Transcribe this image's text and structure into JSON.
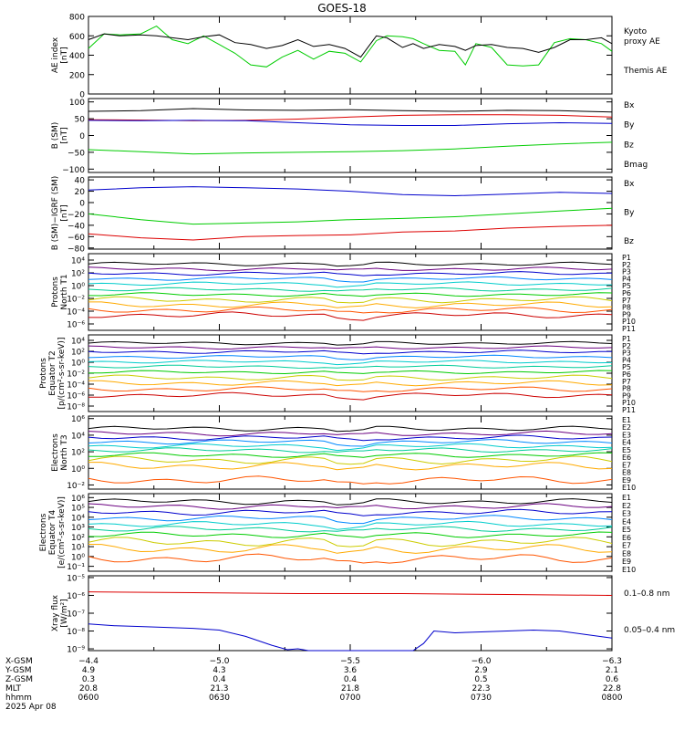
{
  "colors": {
    "black": "#000000",
    "blue": "#0000cc",
    "green": "#00cc00",
    "red": "#dd0000",
    "p_series": [
      "#000000",
      "#6a0080",
      "#0000cc",
      "#0088ff",
      "#00cccc",
      "#00cc99",
      "#00cc00",
      "#cccc00",
      "#ffaa00",
      "#ff5500",
      "#cc0000"
    ],
    "e_series": [
      "#000000",
      "#6a0080",
      "#0000cc",
      "#0088ff",
      "#00cccc",
      "#00cc99",
      "#00cc00",
      "#cccc00",
      "#ffaa00",
      "#ff5500",
      "#cc0000"
    ]
  },
  "chart_data": {
    "type": "line",
    "title": "GOES-18",
    "x_range": [
      "0600",
      "0800"
    ],
    "panels": [
      {
        "id": "ae",
        "ylabel": [
          "AE index",
          "[nT]"
        ],
        "scale": "linear",
        "ylim": [
          0,
          800
        ],
        "yticks": [
          "0",
          "200",
          "400",
          "600",
          "800"
        ],
        "tick_values": [
          0,
          200,
          400,
          600,
          800
        ],
        "legend": [
          {
            "label": "Kyoto",
            "color": "green"
          },
          {
            "label": "proxy AE",
            "color": "green"
          },
          {
            "label": "",
            "color": "black"
          },
          {
            "label": "Themis AE",
            "color": "black"
          }
        ],
        "series": [
          {
            "name": "Kyoto proxy AE",
            "color": "green",
            "x": [
              0,
              0.03,
              0.06,
              0.1,
              0.13,
              0.16,
              0.19,
              0.22,
              0.25,
              0.28,
              0.31,
              0.34,
              0.37,
              0.4,
              0.43,
              0.46,
              0.49,
              0.52,
              0.55,
              0.57,
              0.6,
              0.62,
              0.64,
              0.67,
              0.7,
              0.72,
              0.74,
              0.77,
              0.8,
              0.83,
              0.86,
              0.89,
              0.92,
              0.95,
              0.98,
              1
            ],
            "y": [
              470,
              620,
              610,
              620,
              700,
              560,
              520,
              600,
              510,
              420,
              300,
              280,
              380,
              450,
              360,
              440,
              420,
              330,
              550,
              600,
              590,
              570,
              520,
              450,
              440,
              300,
              520,
              480,
              300,
              290,
              300,
              530,
              570,
              560,
              520,
              440
            ]
          },
          {
            "name": "Themis AE",
            "color": "black",
            "x": [
              0,
              0.03,
              0.06,
              0.1,
              0.13,
              0.16,
              0.19,
              0.22,
              0.25,
              0.28,
              0.31,
              0.34,
              0.37,
              0.4,
              0.43,
              0.46,
              0.49,
              0.52,
              0.55,
              0.57,
              0.6,
              0.62,
              0.64,
              0.67,
              0.7,
              0.72,
              0.74,
              0.77,
              0.8,
              0.83,
              0.86,
              0.89,
              0.92,
              0.95,
              0.98,
              1
            ],
            "y": [
              560,
              620,
              600,
              610,
              600,
              580,
              560,
              590,
              610,
              530,
              510,
              470,
              500,
              560,
              490,
              510,
              470,
              380,
              600,
              580,
              480,
              520,
              470,
              510,
              490,
              450,
              500,
              510,
              480,
              470,
              430,
              480,
              560,
              560,
              580,
              520
            ]
          }
        ]
      },
      {
        "id": "bsm",
        "ylabel": [
          "B (SM)",
          "[nT]"
        ],
        "scale": "linear",
        "ylim": [
          -110,
          110
        ],
        "yticks": [
          "100",
          "50",
          "0",
          "−50",
          "−100"
        ],
        "tick_values": [
          100,
          50,
          0,
          -50,
          -100
        ],
        "legend": [
          {
            "label": "Bx",
            "color": "blue"
          },
          {
            "label": "By",
            "color": "green"
          },
          {
            "label": "Bz",
            "color": "red"
          },
          {
            "label": "Bmag",
            "color": "black"
          }
        ],
        "series": [
          {
            "name": "Bmag",
            "color": "black",
            "x": [
              0,
              0.1,
              0.2,
              0.3,
              0.4,
              0.5,
              0.6,
              0.7,
              0.8,
              0.9,
              1
            ],
            "y": [
              72,
              74,
              80,
              76,
              75,
              77,
              74,
              72,
              75,
              74,
              70
            ]
          },
          {
            "name": "Bz",
            "color": "red",
            "x": [
              0,
              0.1,
              0.2,
              0.3,
              0.4,
              0.5,
              0.6,
              0.7,
              0.8,
              0.9,
              1
            ],
            "y": [
              47,
              46,
              44,
              45,
              49,
              55,
              60,
              62,
              62,
              60,
              55
            ]
          },
          {
            "name": "Bx",
            "color": "blue",
            "x": [
              0,
              0.1,
              0.2,
              0.3,
              0.4,
              0.5,
              0.6,
              0.7,
              0.8,
              0.9,
              1
            ],
            "y": [
              45,
              44,
              45,
              44,
              38,
              32,
              30,
              30,
              35,
              38,
              36
            ]
          },
          {
            "name": "By",
            "color": "green",
            "x": [
              0,
              0.1,
              0.2,
              0.3,
              0.4,
              0.5,
              0.6,
              0.7,
              0.8,
              0.9,
              1
            ],
            "y": [
              -42,
              -48,
              -55,
              -52,
              -50,
              -48,
              -45,
              -40,
              -32,
              -25,
              -20
            ]
          }
        ]
      },
      {
        "id": "bigrf",
        "ylabel": [
          "B (SM)−IGRF (SM)",
          "[nT]"
        ],
        "scale": "linear",
        "ylim": [
          -82,
          45
        ],
        "yticks": [
          "40",
          "20",
          "0",
          "−20",
          "−40",
          "−60",
          "−80"
        ],
        "tick_values": [
          40,
          20,
          0,
          -20,
          -40,
          -60,
          -80
        ],
        "legend": [
          {
            "label": "Bx",
            "color": "blue"
          },
          {
            "label": "By",
            "color": "green"
          },
          {
            "label": "Bz",
            "color": "red"
          }
        ],
        "series": [
          {
            "name": "Bx",
            "color": "blue",
            "x": [
              0,
              0.1,
              0.2,
              0.3,
              0.4,
              0.5,
              0.6,
              0.7,
              0.8,
              0.9,
              1
            ],
            "y": [
              22,
              26,
              28,
              26,
              24,
              20,
              14,
              12,
              15,
              18,
              16
            ]
          },
          {
            "name": "By",
            "color": "green",
            "x": [
              0,
              0.1,
              0.2,
              0.3,
              0.4,
              0.5,
              0.6,
              0.7,
              0.8,
              0.9,
              1
            ],
            "y": [
              -20,
              -30,
              -38,
              -36,
              -34,
              -30,
              -28,
              -25,
              -20,
              -15,
              -10
            ]
          },
          {
            "name": "Bz",
            "color": "red",
            "x": [
              0,
              0.1,
              0.2,
              0.3,
              0.4,
              0.5,
              0.6,
              0.7,
              0.8,
              0.9,
              1
            ],
            "y": [
              -55,
              -62,
              -66,
              -60,
              -58,
              -57,
              -52,
              -50,
              -45,
              -42,
              -40
            ]
          }
        ]
      },
      {
        "id": "pt1",
        "ylabel": [
          "Protons",
          "North T1"
        ],
        "scale": "log",
        "ylim": [
          -7,
          5
        ],
        "yticks": [
          "10⁴",
          "10²",
          "10⁰",
          "10⁻²",
          "10⁻⁴",
          "10⁻⁶"
        ],
        "tick_values": [
          4,
          2,
          0,
          -2,
          -4,
          -6
        ],
        "legend_series": "p",
        "legend": [
          "P1",
          "P2",
          "P3",
          "P4",
          "P5",
          "P6",
          "P7",
          "P8",
          "P9",
          "P10",
          "P11"
        ],
        "levels": [
          3.4,
          2.6,
          1.9,
          1.1,
          0.3,
          -0.6,
          -1.4,
          -2.2,
          -3.0,
          -3.8,
          -4.6
        ]
      },
      {
        "id": "pt2",
        "ylabel": [
          "Protons",
          "Equator T2",
          "[p/(cm²-s-sr-keV)]"
        ],
        "scale": "log",
        "ylim": [
          -9,
          5
        ],
        "yticks": [
          "10⁴",
          "10²",
          "10⁰",
          "10⁻²",
          "10⁻⁴",
          "10⁻⁶",
          "10⁻⁸"
        ],
        "tick_values": [
          4,
          2,
          0,
          -2,
          -4,
          -6,
          -8
        ],
        "legend_series": "p",
        "legend": [
          "P1",
          "P2",
          "P3",
          "P4",
          "P5",
          "P6",
          "P7",
          "P8",
          "P9",
          "P10",
          "P11"
        ],
        "levels": [
          3.5,
          2.7,
          1.9,
          1.0,
          0.1,
          -0.8,
          -1.8,
          -2.8,
          -3.8,
          -4.9,
          -6.0
        ]
      },
      {
        "id": "et3",
        "ylabel": [
          "Electrons",
          "North T3"
        ],
        "scale": "log",
        "ylim": [
          -2.5,
          6.3
        ],
        "yticks": [
          "10⁶",
          "10⁴",
          "10²",
          "10⁰",
          "10⁻²"
        ],
        "tick_values": [
          6,
          4,
          2,
          0,
          -2
        ],
        "legend_series": "e",
        "legend": [
          "E1",
          "E2",
          "E3",
          "E4",
          "E5",
          "E6",
          "E7",
          "E8",
          "E9",
          "E10"
        ],
        "levels": [
          4.8,
          4.2,
          3.7,
          3.2,
          2.7,
          2.2,
          1.6,
          1.0,
          0.3,
          -1.4
        ]
      },
      {
        "id": "et4",
        "ylabel": [
          "Electrons",
          "Equator T4",
          "[e/(cm²-s-sr-keV)]"
        ],
        "scale": "log",
        "ylim": [
          -1.5,
          6.4
        ],
        "yticks": [
          "10⁶",
          "10⁵",
          "10⁴",
          "10³",
          "10²",
          "10¹",
          "10⁰",
          "10⁻¹"
        ],
        "tick_values": [
          6,
          5,
          4,
          3,
          2,
          1,
          0,
          -1
        ],
        "legend_series": "e",
        "legend": [
          "E1",
          "E2",
          "E3",
          "E4",
          "E5",
          "E6",
          "E7",
          "E8",
          "E9",
          "E10"
        ],
        "levels": [
          5.6,
          5.1,
          4.5,
          3.9,
          3.3,
          2.8,
          2.2,
          1.5,
          0.8,
          -0.2
        ]
      },
      {
        "id": "xray",
        "ylabel": [
          "Xray flux",
          "[W/m²]"
        ],
        "scale": "log",
        "ylim": [
          -9.1,
          -4.9
        ],
        "yticks": [
          "10⁻⁵",
          "10⁻⁶",
          "10⁻⁷",
          "10⁻⁸",
          "10⁻⁹"
        ],
        "tick_values": [
          -5,
          -6,
          -7,
          -8,
          -9
        ],
        "legend": [
          {
            "label": "0.1–0.8 nm",
            "color": "red"
          },
          {
            "label": "0.05–0.4 nm",
            "color": "blue"
          }
        ],
        "series": [
          {
            "name": "0.1–0.8 nm",
            "color": "red",
            "x": [
              0,
              0.2,
              0.4,
              0.6,
              0.8,
              1
            ],
            "y": [
              -5.8,
              -5.85,
              -5.9,
              -5.9,
              -5.95,
              -6.0
            ]
          },
          {
            "name": "0.05–0.4 nm",
            "color": "blue",
            "x": [
              0,
              0.05,
              0.1,
              0.15,
              0.2,
              0.25,
              0.3,
              0.35,
              0.38,
              0.4,
              0.42,
              0.62,
              0.64,
              0.66,
              0.7,
              0.75,
              0.8,
              0.85,
              0.9,
              0.95,
              1
            ],
            "y": [
              -7.6,
              -7.7,
              -7.75,
              -7.8,
              -7.85,
              -7.95,
              -8.3,
              -8.8,
              -9.05,
              -9.0,
              -9.1,
              -9.1,
              -8.7,
              -8.0,
              -8.1,
              -8.05,
              -8.0,
              -7.95,
              -8.0,
              -8.2,
              -8.4
            ]
          }
        ]
      }
    ],
    "xaxis": {
      "row_labels": [
        "X-GSM",
        "Y-GSM",
        "Z-GSM",
        "MLT",
        "hhmm",
        "2025 Apr 08"
      ],
      "columns": [
        {
          "values": [
            "−4.4",
            "4.9",
            "0.3",
            "20.8",
            "0600"
          ]
        },
        {
          "values": [
            "−5.0",
            "4.3",
            "0.4",
            "21.3",
            "0630"
          ]
        },
        {
          "values": [
            "−5.5",
            "3.6",
            "0.4",
            "21.8",
            "0700"
          ]
        },
        {
          "values": [
            "−6.0",
            "2.9",
            "0.5",
            "22.3",
            "0730"
          ]
        },
        {
          "values": [
            "−6.3",
            "2.1",
            "0.6",
            "22.8",
            "0800"
          ]
        }
      ]
    }
  }
}
